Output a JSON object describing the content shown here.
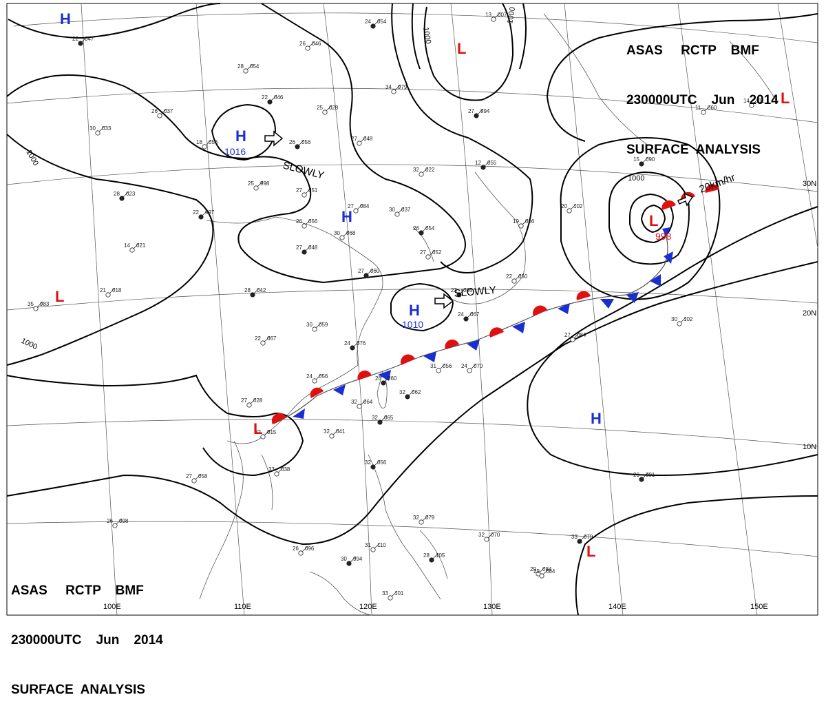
{
  "header": {
    "line1": "ASAS     RCTP    BMF",
    "line2": "230000UTC    Jun    2014",
    "line3": "SURFACE  ANALYSIS"
  },
  "isobars": {
    "label_1000": "1000"
  },
  "latitude_labels": [
    "30N",
    "20N",
    "10N"
  ],
  "longitude_labels": [
    "100E",
    "110E",
    "120E",
    "130E",
    "140E",
    "150E"
  ],
  "systems": [
    {
      "id": "h-northwest",
      "type": "H"
    },
    {
      "id": "h-china",
      "type": "H",
      "pressure": "1016",
      "motion": "SLOWLY"
    },
    {
      "id": "h-central",
      "type": "H"
    },
    {
      "id": "h-eastchina-sea",
      "type": "H",
      "pressure": "1010",
      "motion": "SLOWLY"
    },
    {
      "id": "h-pacific",
      "type": "H"
    },
    {
      "id": "l-north",
      "type": "L"
    },
    {
      "id": "l-northeast",
      "type": "L"
    },
    {
      "id": "l-west",
      "type": "L"
    },
    {
      "id": "l-south-china",
      "type": "L"
    },
    {
      "id": "l-east-pacific",
      "type": "L"
    },
    {
      "id": "l-typhoon",
      "type": "L",
      "pressure": "998",
      "motion": "20km/hr"
    }
  ],
  "stations": [
    {
      "t": "22",
      "p": "047"
    },
    {
      "t": "28",
      "p": "054"
    },
    {
      "t": "26",
      "p": "046"
    },
    {
      "t": "24",
      "p": "054"
    },
    {
      "t": "13",
      "p": "007"
    },
    {
      "t": "34",
      "p": "979"
    },
    {
      "t": "22",
      "p": "046"
    },
    {
      "t": "25",
      "p": "028"
    },
    {
      "t": "26",
      "p": "037"
    },
    {
      "t": "27",
      "p": "994"
    },
    {
      "t": "30",
      "p": "033"
    },
    {
      "t": "18",
      "p": "056"
    },
    {
      "t": "26",
      "p": "056"
    },
    {
      "t": "27",
      "p": "048"
    },
    {
      "t": "32",
      "p": "022"
    },
    {
      "t": "12",
      "p": "055"
    },
    {
      "t": "25",
      "p": "998"
    },
    {
      "t": "27",
      "p": "051"
    },
    {
      "t": "28",
      "p": "023"
    },
    {
      "t": "27",
      "p": "084"
    },
    {
      "t": "30",
      "p": "037"
    },
    {
      "t": "22",
      "p": "997"
    },
    {
      "t": "26",
      "p": "056"
    },
    {
      "t": "30",
      "p": "068"
    },
    {
      "t": "26",
      "p": "054"
    },
    {
      "t": "19",
      "p": "066"
    },
    {
      "t": "14",
      "p": "021"
    },
    {
      "t": "27",
      "p": "048"
    },
    {
      "t": "27",
      "p": "052"
    },
    {
      "t": "20",
      "p": "102"
    },
    {
      "t": "15",
      "p": "090"
    },
    {
      "t": "11",
      "p": "060"
    },
    {
      "t": "14",
      "p": "111"
    },
    {
      "t": "27",
      "p": "060"
    },
    {
      "t": "22",
      "p": "050"
    },
    {
      "t": "21",
      "p": "018"
    },
    {
      "t": "28",
      "p": "042"
    },
    {
      "t": "35",
      "p": "983"
    },
    {
      "t": "30",
      "p": "059"
    },
    {
      "t": "24",
      "p": "067"
    },
    {
      "t": "30",
      "p": "102"
    },
    {
      "t": "22",
      "p": "067"
    },
    {
      "t": "24",
      "p": "076"
    },
    {
      "t": "27",
      "p": "084"
    },
    {
      "t": "24",
      "p": "056"
    },
    {
      "t": "26",
      "p": "060"
    },
    {
      "t": "31",
      "p": "056"
    },
    {
      "t": "24",
      "p": "070"
    },
    {
      "t": "32",
      "p": "062"
    },
    {
      "t": "27",
      "p": "028"
    },
    {
      "t": "32",
      "p": "064"
    },
    {
      "t": "32",
      "p": "065"
    },
    {
      "t": "32",
      "p": "041"
    },
    {
      "t": "32",
      "p": "015"
    },
    {
      "t": "29",
      "p": "091"
    },
    {
      "t": "27",
      "p": "058"
    },
    {
      "t": "33",
      "p": "038"
    },
    {
      "t": "32",
      "p": "056"
    },
    {
      "t": "26",
      "p": "098"
    },
    {
      "t": "26",
      "p": "096"
    },
    {
      "t": "30",
      "p": "994"
    },
    {
      "t": "31",
      "p": "110"
    },
    {
      "t": "29",
      "p": "084"
    },
    {
      "t": "28",
      "p": "105"
    },
    {
      "t": "32",
      "p": "079"
    },
    {
      "t": "32",
      "p": "070"
    },
    {
      "t": "33",
      "p": "079"
    },
    {
      "t": "29",
      "p": "084"
    },
    {
      "t": "33",
      "p": "101"
    },
    {
      "t": "23",
      "p": "085"
    }
  ],
  "colors": {
    "high": "#1a2fd0",
    "low": "#e01010",
    "isobar": "#000000",
    "grid": "#555555"
  }
}
